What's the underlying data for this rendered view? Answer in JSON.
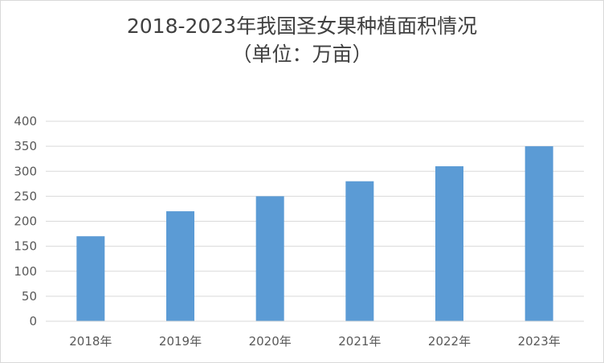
{
  "chart_data": {
    "type": "bar",
    "title": "2018-2023年我国圣女果种植面积情况",
    "subtitle": "（单位：万亩）",
    "xlabel": "",
    "ylabel": "",
    "categories": [
      "2018年",
      "2019年",
      "2020年",
      "2021年",
      "2022年",
      "2023年"
    ],
    "values": [
      170,
      220,
      250,
      280,
      310,
      350
    ],
    "ylim": [
      0,
      400
    ],
    "yticks": [
      0,
      50,
      100,
      150,
      200,
      250,
      300,
      350,
      400
    ],
    "grid": true,
    "legend": "none",
    "bar_color": "#5b9bd5",
    "grid_color": "#d9d9d9"
  }
}
